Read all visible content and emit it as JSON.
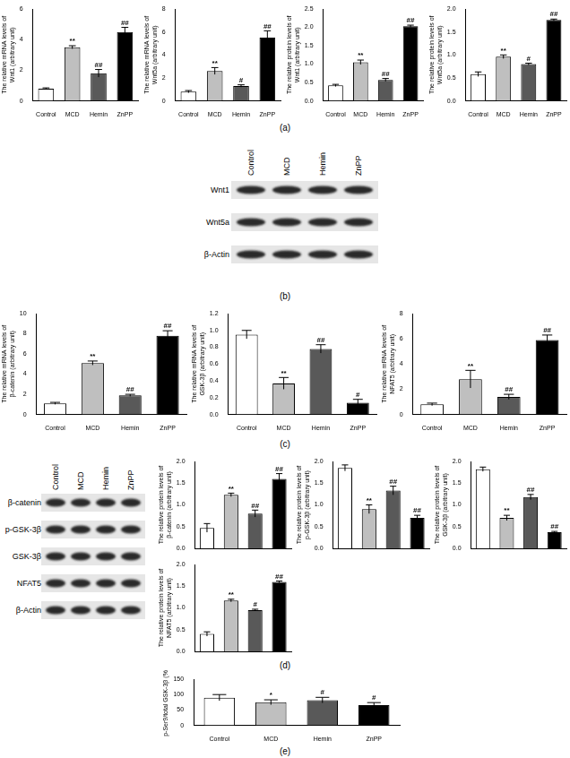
{
  "chart_data": [
    {
      "type": "bar",
      "ylabel": [
        "The relative mRNA levels of",
        "Wnt1 (arbitrary unit)"
      ],
      "categories": [
        "Control",
        "MCD",
        "Hemin",
        "ZnPP"
      ],
      "values": [
        0.8,
        3.5,
        1.8,
        4.5
      ],
      "errors": [
        0.05,
        0.1,
        0.25,
        0.3
      ],
      "annotations": [
        null,
        "**",
        "##",
        "##"
      ],
      "colors": [
        "#ffffff",
        "#bfbfbf",
        "#595959",
        "#000000"
      ],
      "ylim": [
        0,
        6
      ],
      "yticks": [
        0,
        2,
        4,
        6
      ],
      "grid": false
    },
    {
      "type": "bar",
      "ylabel": [
        "The relative mRNA levels of",
        "Wnt5a (arbitrary unit)"
      ],
      "categories": [
        "Control",
        "MCD",
        "Hemin",
        "ZnPP"
      ],
      "values": [
        0.8,
        2.6,
        1.3,
        5.5
      ],
      "errors": [
        0.1,
        0.3,
        0.1,
        0.6
      ],
      "annotations": [
        null,
        "**",
        "#",
        "##"
      ],
      "colors": [
        "#ffffff",
        "#bfbfbf",
        "#595959",
        "#000000"
      ],
      "ylim": [
        0,
        8
      ],
      "yticks": [
        0,
        2,
        4,
        6,
        8
      ],
      "grid": false
    },
    {
      "type": "bar",
      "ylabel": [
        "The relative protein levels of",
        "Wnt1 (arbitrary unit)"
      ],
      "categories": [
        "Control",
        "MCD",
        "Hemin",
        "ZnPP"
      ],
      "values": [
        0.42,
        1.05,
        0.57,
        2.03
      ],
      "errors": [
        0.03,
        0.06,
        0.04,
        0.03
      ],
      "annotations": [
        null,
        "**",
        "##",
        "##"
      ],
      "colors": [
        "#ffffff",
        "#bfbfbf",
        "#595959",
        "#000000"
      ],
      "ylim": [
        0,
        2.5
      ],
      "yticks": [
        {
          "value": 0,
          "label": "0.0"
        },
        {
          "value": 0.5,
          "label": "0.5"
        },
        {
          "value": 1,
          "label": "1.0"
        },
        {
          "value": 1.5,
          "label": "1.5"
        },
        {
          "value": 2,
          "label": "2.0"
        },
        {
          "value": 2.5,
          "label": "2.5"
        }
      ],
      "grid": false
    },
    {
      "type": "bar",
      "ylabel": [
        "The relative protein levels of",
        "Wnt5a (arbitrary unit)"
      ],
      "categories": [
        "Control",
        "MCD",
        "Hemin",
        "ZnPP"
      ],
      "values": [
        0.58,
        0.96,
        0.8,
        1.76
      ],
      "errors": [
        0.05,
        0.04,
        0.02,
        0.02
      ],
      "annotations": [
        null,
        "**",
        "#",
        "##"
      ],
      "colors": [
        "#ffffff",
        "#bfbfbf",
        "#595959",
        "#000000"
      ],
      "ylim": [
        0,
        2
      ],
      "yticks": [
        {
          "value": 0,
          "label": "0.0"
        },
        {
          "value": 0.5,
          "label": "0.5"
        },
        {
          "value": 1,
          "label": "1.0"
        },
        {
          "value": 1.5,
          "label": "1.5"
        },
        {
          "value": 2,
          "label": "2.0"
        }
      ],
      "grid": false
    },
    {
      "type": "bar",
      "ylabel": [
        "The relative mRNA levels of",
        "β-catenin (arbitrary unit)"
      ],
      "categories": [
        "Control",
        "MCD",
        "Hemin",
        "ZnPP"
      ],
      "values": [
        1.1,
        5.1,
        1.9,
        7.8
      ],
      "errors": [
        0.1,
        0.2,
        0.1,
        0.5
      ],
      "annotations": [
        null,
        "**",
        "##",
        "##"
      ],
      "colors": [
        "#ffffff",
        "#bfbfbf",
        "#595959",
        "#000000"
      ],
      "ylim": [
        0,
        10
      ],
      "yticks": [
        0,
        2,
        4,
        6,
        8,
        10
      ],
      "grid": false
    },
    {
      "type": "bar",
      "ylabel": [
        "The relative mRNA levels of",
        "GSK-3β (arbitrary unit)"
      ],
      "categories": [
        "Control",
        "MCD",
        "Hemin",
        "ZnPP"
      ],
      "values": [
        0.95,
        0.37,
        0.78,
        0.14
      ],
      "errors": [
        0.05,
        0.07,
        0.05,
        0.04
      ],
      "annotations": [
        null,
        "**",
        "##",
        "#"
      ],
      "colors": [
        "#ffffff",
        "#bfbfbf",
        "#595959",
        "#000000"
      ],
      "ylim": [
        0,
        1.2
      ],
      "yticks": [
        {
          "value": 0,
          "label": "0.0"
        },
        {
          "value": 0.2,
          "label": "0.2"
        },
        {
          "value": 0.4,
          "label": "0.4"
        },
        {
          "value": 0.6,
          "label": "0.6"
        },
        {
          "value": 0.8,
          "label": "0.8"
        },
        {
          "value": 1,
          "label": "1.0"
        },
        {
          "value": 1.2,
          "label": "1.2"
        }
      ],
      "grid": false
    },
    {
      "type": "bar",
      "ylabel": [
        "The relative mRNA levels of",
        "NFAT5 (arbitrary unit)"
      ],
      "categories": [
        "Control",
        "MCD",
        "Hemin",
        "ZnPP"
      ],
      "values": [
        0.8,
        2.8,
        1.4,
        5.9
      ],
      "errors": [
        0.1,
        0.7,
        0.2,
        0.4
      ],
      "annotations": [
        null,
        "**",
        "##",
        "##"
      ],
      "colors": [
        "#ffffff",
        "#bfbfbf",
        "#595959",
        "#000000"
      ],
      "ylim": [
        0,
        8
      ],
      "yticks": [
        0,
        2,
        4,
        6,
        8
      ],
      "grid": false
    },
    {
      "type": "bar",
      "ylabel": [
        "The relative protein levels of",
        "β-catenin (arbitrary unit)"
      ],
      "categories": [
        "Control",
        "MCD",
        "Hemin",
        "ZnPP"
      ],
      "values": [
        0.47,
        1.23,
        0.8,
        1.6
      ],
      "errors": [
        0.1,
        0.04,
        0.08,
        0.12
      ],
      "annotations": [
        null,
        "**",
        "##",
        "##"
      ],
      "colors": [
        "#ffffff",
        "#bfbfbf",
        "#595959",
        "#000000"
      ],
      "ylim": [
        0,
        2
      ],
      "yticks": [
        {
          "value": 0,
          "label": "0.0"
        },
        {
          "value": 0.5,
          "label": "0.5"
        },
        {
          "value": 1,
          "label": "1.0"
        },
        {
          "value": 1.5,
          "label": "1.5"
        },
        {
          "value": 2,
          "label": "2.0"
        }
      ],
      "grid": false,
      "tick_labels": "y"
    },
    {
      "type": "bar",
      "ylabel": [
        "The relative protein levels of",
        "p-GSK-3β (arbitrary unit)"
      ],
      "categories": [
        "Control",
        "MCD",
        "Hemin",
        "ZnPP"
      ],
      "values": [
        1.85,
        0.9,
        1.33,
        0.7
      ],
      "errors": [
        0.07,
        0.1,
        0.1,
        0.06
      ],
      "annotations": [
        null,
        "**",
        "##",
        "##"
      ],
      "colors": [
        "#ffffff",
        "#bfbfbf",
        "#595959",
        "#000000"
      ],
      "ylim": [
        0,
        2
      ],
      "yticks": [
        {
          "value": 0,
          "label": "0.0"
        },
        {
          "value": 0.5,
          "label": "0.5"
        },
        {
          "value": 1,
          "label": "1.0"
        },
        {
          "value": 1.5,
          "label": "1.5"
        },
        {
          "value": 2,
          "label": "2.0"
        }
      ],
      "grid": false,
      "tick_labels": "y"
    },
    {
      "type": "bar",
      "ylabel": [
        "The relative protein levels of",
        "GSK-3β (arbitrary unit)"
      ],
      "categories": [
        "Control",
        "MCD",
        "Hemin",
        "ZnPP"
      ],
      "values": [
        1.82,
        0.7,
        1.18,
        0.37
      ],
      "errors": [
        0.05,
        0.06,
        0.06,
        0.02
      ],
      "annotations": [
        null,
        "**",
        "##",
        "##"
      ],
      "colors": [
        "#ffffff",
        "#bfbfbf",
        "#595959",
        "#000000"
      ],
      "ylim": [
        0,
        2
      ],
      "yticks": [
        {
          "value": 0,
          "label": "0.0"
        },
        {
          "value": 0.5,
          "label": "0.5"
        },
        {
          "value": 1,
          "label": "1.0"
        },
        {
          "value": 1.5,
          "label": "1.5"
        },
        {
          "value": 2,
          "label": "2.0"
        }
      ],
      "grid": false,
      "tick_labels": "y"
    },
    {
      "type": "bar",
      "ylabel": [
        "The relative protein levels of",
        "NFAT5 (arbitrary unit)"
      ],
      "categories": [
        "Control",
        "MCD",
        "Hemin",
        "ZnPP"
      ],
      "values": [
        0.4,
        1.17,
        0.95,
        1.6
      ],
      "errors": [
        0.05,
        0.03,
        0.02,
        0.02
      ],
      "annotations": [
        null,
        "**",
        "#",
        "##"
      ],
      "colors": [
        "#ffffff",
        "#bfbfbf",
        "#595959",
        "#000000"
      ],
      "ylim": [
        0,
        2
      ],
      "yticks": [
        {
          "value": 0,
          "label": "0.0"
        },
        {
          "value": 0.5,
          "label": "0.5"
        },
        {
          "value": 1,
          "label": "1.0"
        },
        {
          "value": 1.5,
          "label": "1.5"
        },
        {
          "value": 2,
          "label": "2.0"
        }
      ],
      "grid": false,
      "tick_labels": "y"
    },
    {
      "type": "bar",
      "ylabel": [
        "p-Ser9/total GSK-3β (%)"
      ],
      "categories": [
        "Control",
        "MCD",
        "Hemin",
        "ZnPP"
      ],
      "values": [
        90,
        75,
        82,
        66
      ],
      "errors": [
        10,
        8,
        9,
        8
      ],
      "annotations": [
        null,
        "*",
        "#",
        "#"
      ],
      "colors": [
        "#ffffff",
        "#bfbfbf",
        "#595959",
        "#000000"
      ],
      "ylim": [
        0,
        150
      ],
      "yticks": [
        0,
        50,
        100,
        150
      ],
      "grid": false
    }
  ],
  "panel_labels": [
    "(a)",
    "(b)",
    "(c)",
    "(d)",
    "(e)"
  ],
  "blots": [
    {
      "lanes": [
        "Control",
        "MCD",
        "Hemin",
        "ZnPP"
      ],
      "rows": [
        "Wnt1",
        "Wnt5a",
        "β-Actin"
      ]
    },
    {
      "lanes": [
        "Control",
        "MCD",
        "Hemin",
        "ZnPP"
      ],
      "rows": [
        "β-catenin",
        "p-GSK-3β",
        "GSK-3β",
        "NFAT5",
        "β-Actin"
      ]
    }
  ]
}
